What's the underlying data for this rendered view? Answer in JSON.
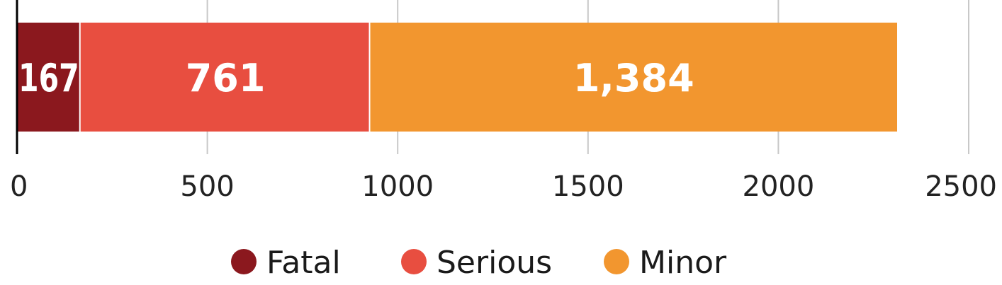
{
  "chart_data": {
    "type": "bar",
    "orientation": "horizontal",
    "stacked": true,
    "categories": [
      ""
    ],
    "series": [
      {
        "name": "Fatal",
        "values": [
          167
        ],
        "label": "167",
        "color": "#8b181e"
      },
      {
        "name": "Serious",
        "values": [
          761
        ],
        "label": "761",
        "color": "#e84e40"
      },
      {
        "name": "Minor",
        "values": [
          1384
        ],
        "label": "1,384",
        "color": "#f2962f"
      }
    ],
    "xlim": [
      0,
      2500
    ],
    "xticks": [
      0,
      500,
      1000,
      1500,
      2000,
      2500
    ],
    "xtick_labels": [
      "0",
      "500",
      "1000",
      "1500",
      "2000",
      "2500"
    ],
    "grid": true,
    "legend": "bottom"
  }
}
